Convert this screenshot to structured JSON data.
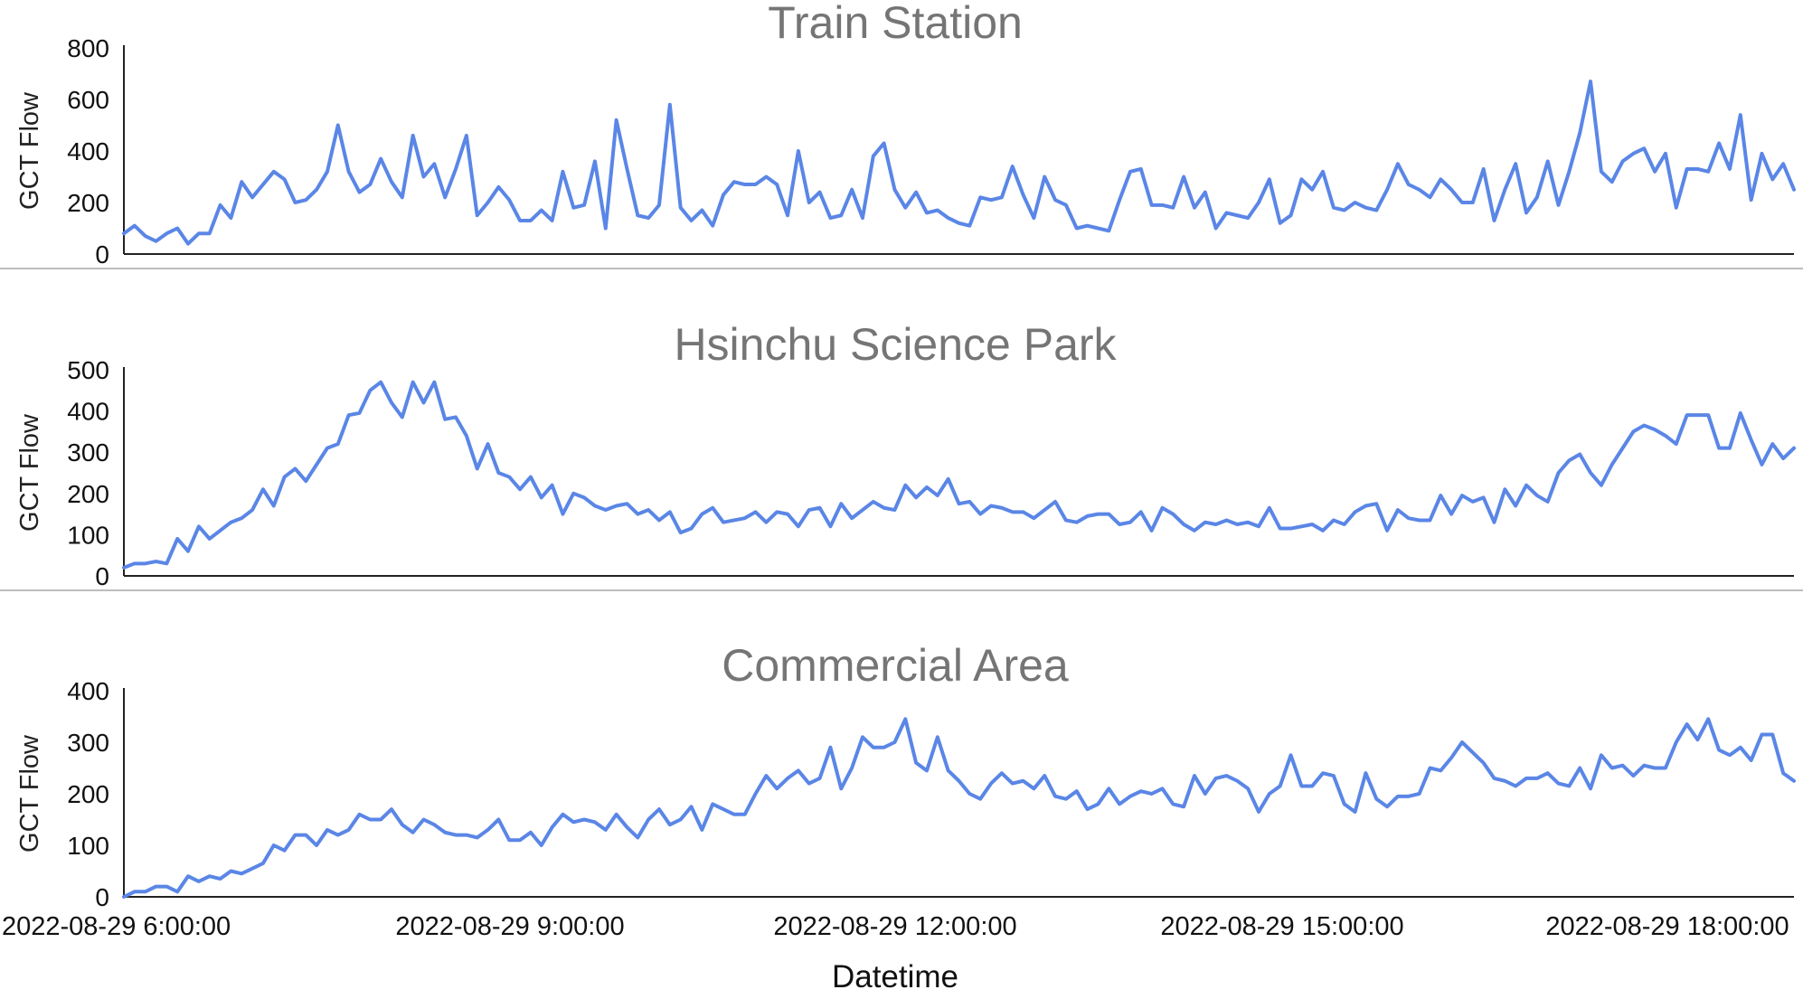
{
  "x_axis": {
    "label": "Datetime",
    "tick_labels": [
      "2022-08-29 6:00:00",
      "2022-08-29 9:00:00",
      "2022-08-29 12:00:00",
      "2022-08-29 15:00:00",
      "2022-08-29 18:00:00"
    ],
    "range": [
      "2022-08-29 06:00",
      "2022-08-29 19:00"
    ]
  },
  "colors": {
    "line": "#5a86e6",
    "title": "#757575",
    "axis": "#222222"
  },
  "chart_data": [
    {
      "type": "line",
      "title": "Train Station",
      "ylabel": "GCT Flow",
      "ylim": [
        0,
        800
      ],
      "yticks": [
        0,
        200,
        400,
        600,
        800
      ],
      "xlabel": "Datetime",
      "legend": "none",
      "grid": false,
      "x_start": "2022-08-29 06:00",
      "x_step_minutes": 5,
      "values": [
        80,
        110,
        70,
        50,
        80,
        100,
        40,
        80,
        80,
        190,
        140,
        280,
        220,
        270,
        320,
        290,
        200,
        210,
        250,
        320,
        500,
        320,
        240,
        270,
        370,
        280,
        220,
        460,
        300,
        350,
        220,
        330,
        460,
        150,
        200,
        260,
        210,
        130,
        130,
        170,
        130,
        320,
        180,
        190,
        360,
        100,
        520,
        330,
        150,
        140,
        190,
        580,
        180,
        130,
        170,
        110,
        230,
        280,
        270,
        270,
        300,
        270,
        150,
        400,
        200,
        240,
        140,
        150,
        250,
        140,
        380,
        430,
        250,
        180,
        240,
        160,
        170,
        140,
        120,
        110,
        220,
        210,
        220,
        340,
        230,
        140,
        300,
        210,
        190,
        100,
        110,
        100,
        90,
        210,
        320,
        330,
        190,
        190,
        180,
        300,
        180,
        240,
        100,
        160,
        150,
        140,
        200,
        290,
        120,
        150,
        290,
        250,
        320,
        180,
        170,
        200,
        180,
        170,
        250,
        350,
        270,
        250,
        220,
        290,
        250,
        200,
        200,
        330,
        130,
        250,
        350,
        160,
        220,
        360,
        190,
        320,
        470,
        670,
        320,
        280,
        360,
        390,
        410,
        320,
        390,
        180,
        330,
        330,
        320,
        430,
        330,
        540,
        210,
        390,
        290,
        350,
        250
      ]
    },
    {
      "type": "line",
      "title": "Hsinchu Science Park",
      "ylabel": "GCT Flow",
      "ylim": [
        0,
        500
      ],
      "yticks": [
        0,
        100,
        200,
        300,
        400,
        500
      ],
      "xlabel": "Datetime",
      "legend": "none",
      "grid": false,
      "x_start": "2022-08-29 06:00",
      "x_step_minutes": 5,
      "values": [
        20,
        30,
        30,
        35,
        30,
        90,
        60,
        120,
        90,
        110,
        130,
        140,
        160,
        210,
        170,
        240,
        260,
        230,
        270,
        310,
        320,
        390,
        395,
        450,
        470,
        420,
        385,
        470,
        420,
        470,
        380,
        385,
        340,
        260,
        320,
        250,
        240,
        210,
        240,
        190,
        220,
        150,
        200,
        190,
        170,
        160,
        170,
        175,
        150,
        160,
        135,
        155,
        105,
        115,
        150,
        165,
        130,
        135,
        140,
        155,
        130,
        155,
        150,
        120,
        160,
        165,
        120,
        175,
        140,
        160,
        180,
        165,
        160,
        220,
        190,
        215,
        195,
        235,
        175,
        180,
        150,
        170,
        165,
        155,
        155,
        140,
        160,
        180,
        135,
        130,
        145,
        150,
        150,
        125,
        130,
        155,
        110,
        165,
        150,
        125,
        110,
        130,
        125,
        135,
        125,
        130,
        120,
        165,
        115,
        115,
        120,
        125,
        110,
        135,
        125,
        155,
        170,
        175,
        110,
        160,
        140,
        135,
        135,
        195,
        150,
        195,
        180,
        190,
        130,
        210,
        170,
        220,
        195,
        180,
        250,
        280,
        295,
        250,
        220,
        270,
        310,
        350,
        365,
        355,
        340,
        320,
        390,
        390,
        390,
        310,
        310,
        395,
        330,
        270,
        320,
        285,
        310
      ]
    },
    {
      "type": "line",
      "title": "Commercial Area",
      "ylabel": "GCT Flow",
      "ylim": [
        0,
        400
      ],
      "yticks": [
        0,
        100,
        200,
        300,
        400
      ],
      "xlabel": "Datetime",
      "legend": "none",
      "grid": false,
      "x_start": "2022-08-29 06:00",
      "x_step_minutes": 5,
      "values": [
        0,
        10,
        10,
        20,
        20,
        10,
        40,
        30,
        40,
        35,
        50,
        45,
        55,
        65,
        100,
        90,
        120,
        120,
        100,
        130,
        120,
        130,
        160,
        150,
        150,
        170,
        140,
        125,
        150,
        140,
        125,
        120,
        120,
        115,
        130,
        150,
        110,
        110,
        125,
        100,
        135,
        160,
        145,
        150,
        145,
        130,
        160,
        135,
        115,
        150,
        170,
        140,
        150,
        175,
        130,
        180,
        170,
        160,
        160,
        200,
        235,
        210,
        230,
        245,
        220,
        230,
        290,
        210,
        250,
        310,
        290,
        290,
        300,
        345,
        260,
        245,
        310,
        245,
        225,
        200,
        190,
        220,
        240,
        220,
        225,
        210,
        235,
        195,
        190,
        205,
        170,
        180,
        210,
        180,
        195,
        205,
        200,
        210,
        180,
        175,
        235,
        200,
        230,
        235,
        225,
        210,
        165,
        200,
        215,
        275,
        215,
        215,
        240,
        235,
        180,
        165,
        240,
        190,
        175,
        195,
        195,
        200,
        250,
        245,
        270,
        300,
        280,
        260,
        230,
        225,
        215,
        230,
        230,
        240,
        220,
        215,
        250,
        210,
        275,
        250,
        255,
        235,
        255,
        250,
        250,
        300,
        335,
        305,
        345,
        285,
        275,
        290,
        265,
        315,
        315,
        240,
        225
      ]
    }
  ]
}
